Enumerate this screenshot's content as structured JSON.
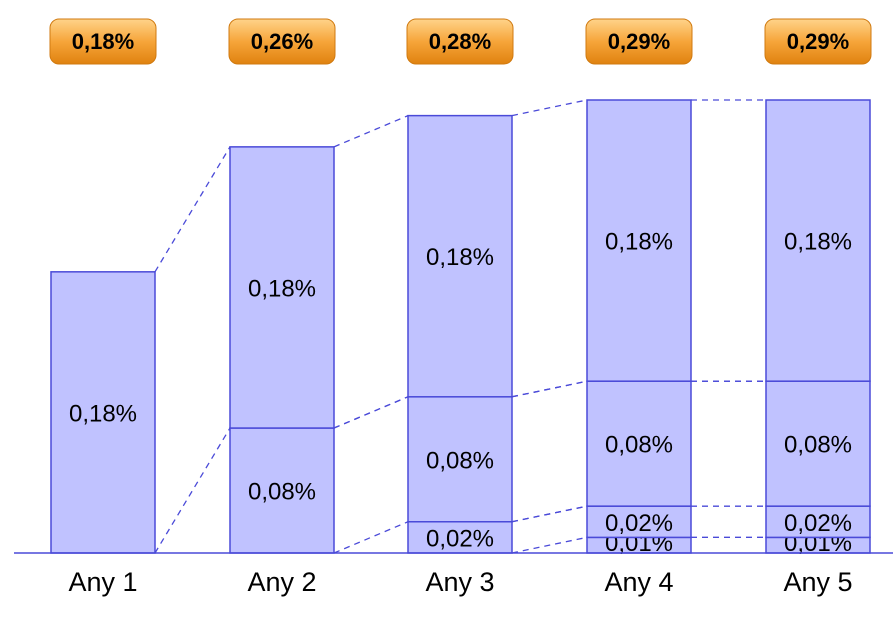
{
  "chart_data": {
    "type": "bar",
    "stacked": true,
    "categories": [
      "Any 1",
      "Any 2",
      "Any 3",
      "Any 4",
      "Any 5"
    ],
    "series": [
      {
        "values": [
          0,
          0,
          0,
          0.01,
          0.01
        ],
        "labels": [
          "",
          "",
          "",
          "0,01%",
          "0,01%"
        ]
      },
      {
        "values": [
          0,
          0,
          0.02,
          0.02,
          0.02
        ],
        "labels": [
          "",
          "",
          "0,02%",
          "0,02%",
          "0,02%"
        ]
      },
      {
        "values": [
          0,
          0.08,
          0.08,
          0.08,
          0.08
        ],
        "labels": [
          "",
          "0,08%",
          "0,08%",
          "0,08%",
          "0,08%"
        ]
      },
      {
        "values": [
          0.18,
          0.18,
          0.18,
          0.18,
          0.18
        ],
        "labels": [
          "0,18%",
          "0,18%",
          "0,18%",
          "0,18%",
          "0,18%"
        ]
      }
    ],
    "totals": [
      0.18,
      0.26,
      0.28,
      0.29,
      0.29
    ],
    "total_labels": [
      "0,18%",
      "0,26%",
      "0,28%",
      "0,29%",
      "0,29%"
    ],
    "ylim": [
      0,
      0.29
    ],
    "grid": false,
    "legend": "none",
    "connectors": "dashed",
    "colors": {
      "bar_fill": "#c0c2ff",
      "bar_stroke": "#4a4ad8",
      "badge_top": "#ffc36b",
      "badge_bottom": "#e98a12"
    }
  }
}
